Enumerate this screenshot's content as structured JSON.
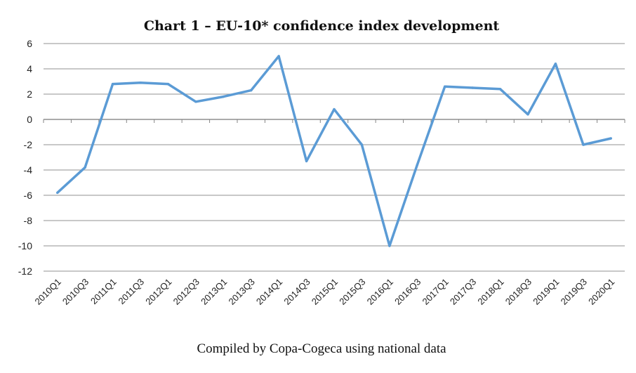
{
  "chart_data": {
    "type": "line",
    "title": "Chart 1 – EU-10* confidence index development",
    "source_note": "Compiled by Copa-Cogeca using national data",
    "xlabel": "",
    "ylabel": "",
    "ylim": [
      -12,
      6
    ],
    "yticks": [
      6,
      4,
      2,
      0,
      -2,
      -4,
      -6,
      -8,
      -10,
      -12
    ],
    "grid": true,
    "legend": "none",
    "categories": [
      "2010Q1",
      "2010Q3",
      "2011Q1",
      "2011Q3",
      "2012Q1",
      "2012Q3",
      "2013Q1",
      "2013Q3",
      "2014Q1",
      "2014Q3",
      "2015Q1",
      "2015Q3",
      "2016Q1",
      "2016Q3",
      "2017Q1",
      "2017Q3",
      "2018Q1",
      "2018Q3",
      "2019Q1",
      "2019Q3",
      "2020Q1"
    ],
    "series": [
      {
        "name": "EU-10 confidence index",
        "color": "#5b9bd5",
        "values": [
          -5.8,
          -3.8,
          2.8,
          2.9,
          2.8,
          1.4,
          1.8,
          2.3,
          5.0,
          -3.3,
          0.8,
          -2.0,
          -10.0,
          -3.6,
          2.6,
          2.5,
          2.4,
          0.4,
          4.4,
          -2.0,
          -1.5
        ]
      }
    ],
    "colors": {
      "grid": "#a6a6a6",
      "axis": "#868686"
    }
  }
}
